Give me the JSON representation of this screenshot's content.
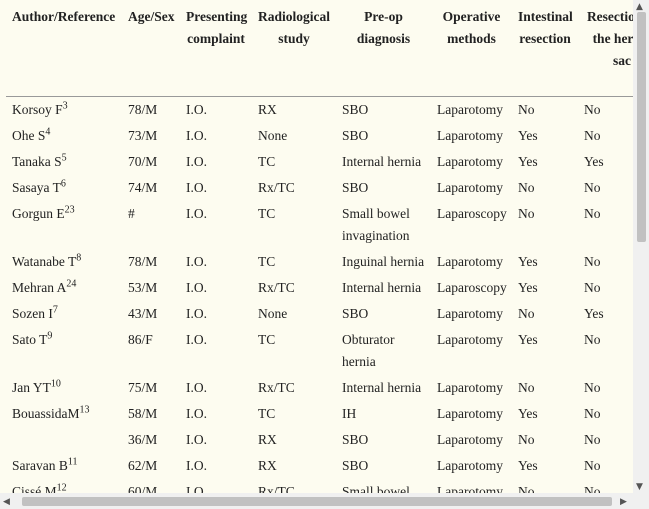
{
  "table": {
    "headers": [
      "Author/Reference",
      "Age/Sex",
      "Presenting complaint",
      "Radiological study",
      "Pre-op diagnosis",
      "Operative methods",
      "Intestinal resection",
      "Resection of the hernia sac"
    ],
    "rows": [
      [
        {
          "name": "Korsoy F",
          "ref": "3"
        },
        "78/M",
        "I.O.",
        "RX",
        "SBO",
        "Laparotomy",
        "No",
        "No"
      ],
      [
        {
          "name": "Ohe S",
          "ref": "4"
        },
        "73/M",
        "I.O.",
        "None",
        "SBO",
        "Laparotomy",
        "Yes",
        "No"
      ],
      [
        {
          "name": "Tanaka S",
          "ref": "5"
        },
        "70/M",
        "I.O.",
        "TC",
        "Internal hernia",
        "Laparotomy",
        "Yes",
        "Yes"
      ],
      [
        {
          "name": "Sasaya T",
          "ref": "6"
        },
        "74/M",
        "I.O.",
        "Rx/TC",
        "SBO",
        "Laparotomy",
        "No",
        "No"
      ],
      [
        {
          "name": "Gorgun E",
          "ref": "23"
        },
        "#",
        "I.O.",
        "TC",
        "Small bowel invagination",
        "Laparoscopy",
        "No",
        "No"
      ],
      [
        {
          "name": "Watanabe T",
          "ref": "8"
        },
        "78/M",
        "I.O.",
        "TC",
        "Inguinal hernia",
        "Laparotomy",
        "Yes",
        "No"
      ],
      [
        {
          "name": "Mehran A",
          "ref": "24"
        },
        "53/M",
        "I.O.",
        "Rx/TC",
        "Internal hernia",
        "Laparoscopy",
        "Yes",
        "No"
      ],
      [
        {
          "name": "Sozen I",
          "ref": "7"
        },
        "43/M",
        "I.O.",
        "None",
        "SBO",
        "Laparotomy",
        "No",
        "Yes"
      ],
      [
        {
          "name": "Sato T",
          "ref": "9"
        },
        "86/F",
        "I.O.",
        "TC",
        "Obturator hernia",
        "Laparotomy",
        "Yes",
        "No"
      ],
      [
        {
          "name": "Jan YT",
          "ref": "10"
        },
        "75/M",
        "I.O.",
        "Rx/TC",
        "Internal hernia",
        "Laparotomy",
        "No",
        "No"
      ],
      [
        {
          "name": "BouassidaM",
          "ref": "13"
        },
        "58/M",
        "I.O.",
        "TC",
        "IH",
        "Laparotomy",
        "Yes",
        "No"
      ],
      [
        null,
        "36/M",
        "I.O.",
        "RX",
        "SBO",
        "Laparotomy",
        "No",
        "No"
      ],
      [
        {
          "name": "Saravan B",
          "ref": "11"
        },
        "62/M",
        "I.O.",
        "RX",
        "SBO",
        "Laparotomy",
        "Yes",
        "No"
      ],
      [
        {
          "name": "Cissé M",
          "ref": "12"
        },
        "60/M",
        "I.O.",
        "Rx/TC",
        "Small bowel",
        "Laparotomy",
        "No",
        "No"
      ]
    ]
  }
}
